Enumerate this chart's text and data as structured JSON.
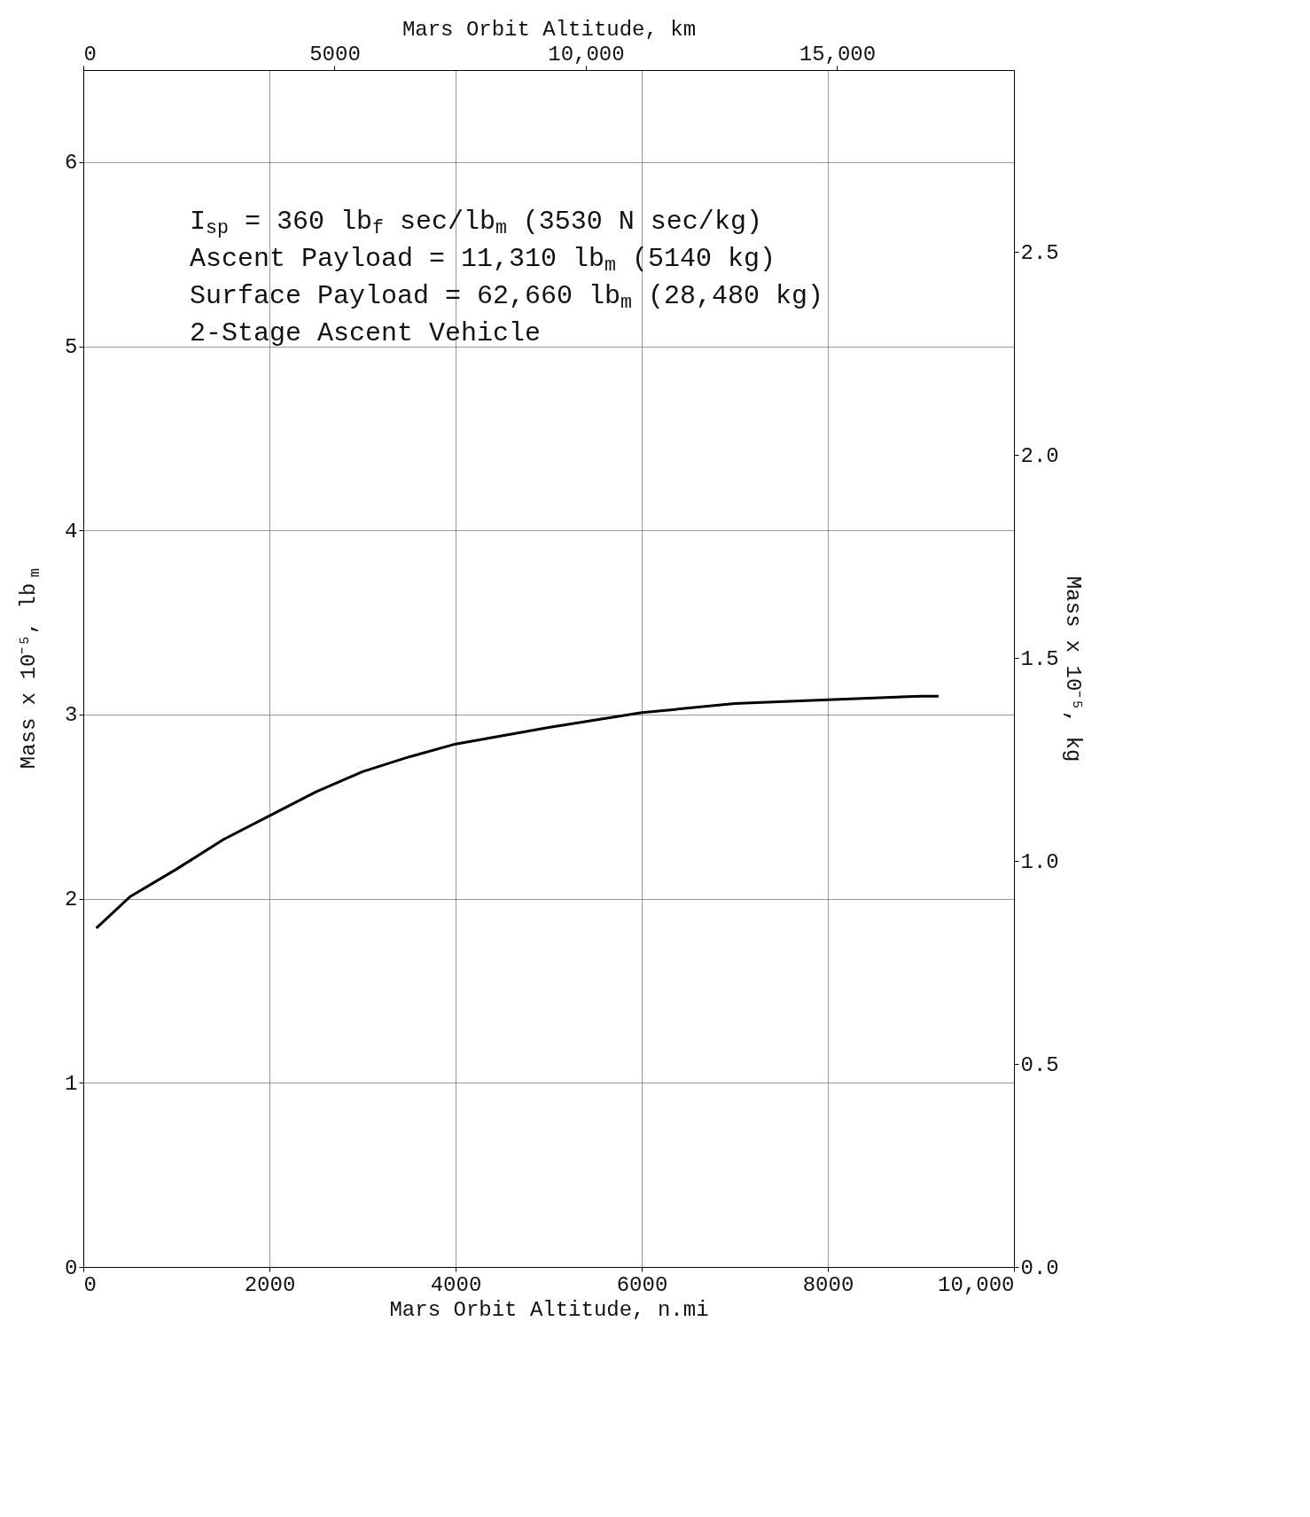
{
  "chart_data": {
    "type": "line",
    "xlabel": "Mars Orbit Altitude, n.mi",
    "x2label": "Mars Orbit Altitude, km",
    "ylabel": "Mass x 10⁻⁵, lb$_{m}$",
    "y2label": "Mass x 10⁻⁵, kg",
    "annotations": [
      "I$_{sp}$ = 360 lb$_{f}$ sec/lb$_{m}$ (3530 N sec/kg)",
      "Ascent Payload = 11,310 lb$_{m}$ (5140 kg)",
      "Surface Payload = 62,660 lb$_{m}$ (28,480 kg)",
      "2-Stage Ascent Vehicle"
    ],
    "x": [
      140,
      500,
      1000,
      1500,
      2000,
      2500,
      3000,
      3500,
      4000,
      5000,
      6000,
      7000,
      8000,
      9000,
      9190
    ],
    "series": [
      {
        "color": "#000000",
        "values": [
          1.84,
          2.01,
          2.16,
          2.32,
          2.45,
          2.58,
          2.69,
          2.77,
          2.84,
          2.93,
          3.01,
          3.06,
          3.08,
          3.1,
          3.1
        ]
      }
    ],
    "xlim": [
      0,
      10000
    ],
    "xticks": [
      0,
      2000,
      4000,
      6000,
      8000,
      {
        "value": 10000,
        "label": "10,000"
      }
    ],
    "x2lim": [
      0,
      18520
    ],
    "x2ticks": [
      0,
      5000,
      {
        "value": 10000,
        "label": "10,000"
      },
      {
        "value": 15000,
        "label": "15,000"
      }
    ],
    "ylim": [
      0,
      6.5
    ],
    "yticks": [
      0,
      1,
      2,
      3,
      4,
      5,
      6
    ],
    "y2lim": [
      0,
      2.948
    ],
    "y2ticks": [
      {
        "value": 0,
        "label": "0.0"
      },
      0.5,
      {
        "value": 1,
        "label": "1.0"
      },
      1.5,
      {
        "value": 2,
        "label": "2.0"
      },
      2.5
    ],
    "grid": true,
    "line_style": "solid",
    "marker": "none",
    "legend": false
  }
}
